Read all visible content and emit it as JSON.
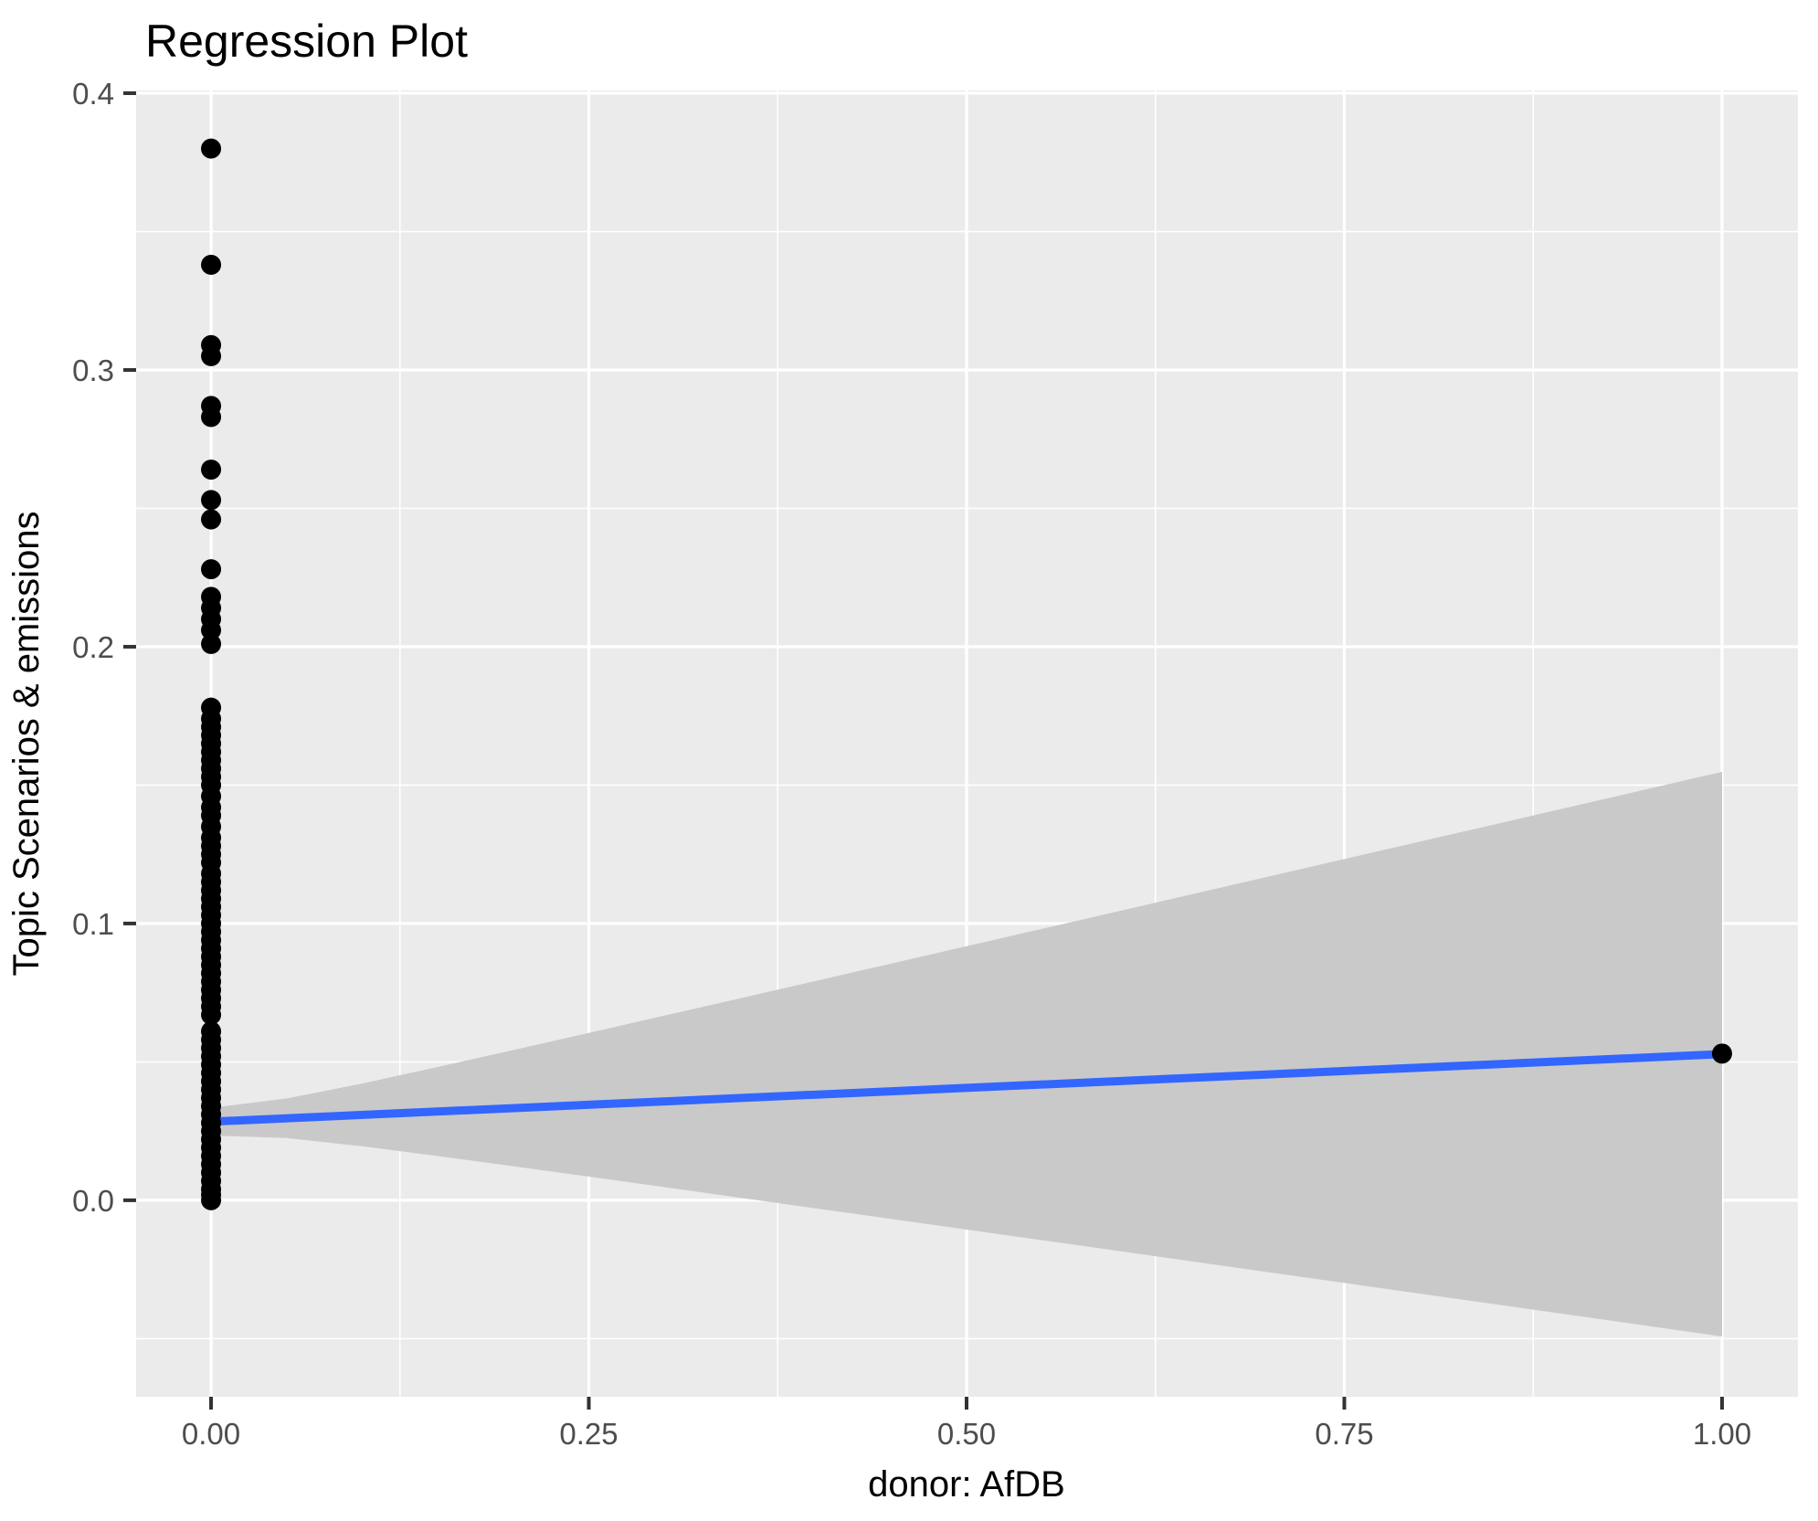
{
  "chart_data": {
    "type": "scatter",
    "title": "Regression Plot",
    "xlabel": "donor: AfDB",
    "ylabel": "Topic Scenarios & emissions",
    "xlim": [
      -0.0496,
      1.0502
    ],
    "ylim": [
      -0.071,
      0.401
    ],
    "grid": "on",
    "legend": "none",
    "x_ticks": {
      "values": [
        0.0,
        0.25,
        0.5,
        0.75,
        1.0
      ],
      "labels": [
        "0.00",
        "0.25",
        "0.50",
        "0.75",
        "1.00"
      ]
    },
    "x_minor_ticks": [
      0.125,
      0.375,
      0.625,
      0.875
    ],
    "y_ticks": {
      "values": [
        0.0,
        0.1,
        0.2,
        0.3,
        0.4
      ],
      "labels": [
        "0.0",
        "0.1",
        "0.2",
        "0.3",
        "0.4"
      ]
    },
    "y_minor_ticks": [
      -0.05,
      0.05,
      0.15,
      0.25,
      0.35
    ],
    "series": [
      {
        "name": "observations at x=0",
        "x_constant": 0,
        "y_values": [
          0.0,
          0.002,
          0.004,
          0.007,
          0.01,
          0.013,
          0.016,
          0.019,
          0.022,
          0.025,
          0.028,
          0.031,
          0.034,
          0.037,
          0.04,
          0.043,
          0.046,
          0.049,
          0.052,
          0.055,
          0.058,
          0.061,
          0.067,
          0.07,
          0.073,
          0.076,
          0.079,
          0.082,
          0.085,
          0.088,
          0.091,
          0.094,
          0.097,
          0.1,
          0.103,
          0.106,
          0.109,
          0.112,
          0.115,
          0.118,
          0.122,
          0.125,
          0.128,
          0.131,
          0.135,
          0.139,
          0.142,
          0.146,
          0.15,
          0.153,
          0.156,
          0.159,
          0.162,
          0.165,
          0.168,
          0.171,
          0.174,
          0.178,
          0.201,
          0.206,
          0.21,
          0.214,
          0.218,
          0.228,
          0.246,
          0.253,
          0.264,
          0.283,
          0.287,
          0.305,
          0.309,
          0.338,
          0.38
        ]
      },
      {
        "name": "observation at x=1",
        "x_constant": 1,
        "y_values": [
          0.053
        ]
      }
    ],
    "regression_line": {
      "x": [
        0,
        1
      ],
      "y": [
        0.0284,
        0.0528
      ],
      "intercept": 0.0284,
      "slope": 0.0244
    },
    "confidence_band": {
      "x": [
        0,
        1
      ],
      "upper": [
        0.0334,
        0.1548
      ],
      "lower": [
        0.0234,
        -0.0492
      ],
      "halfwidth_at_0": 0.005,
      "halfwidth_at_1": 0.102,
      "shape": "flared"
    },
    "colors": {
      "panel_background": "#EBEBEB",
      "gridline": "#FFFFFF",
      "point": "#000000",
      "regression_line": "#3366FF",
      "confidence_band": "#C9C9C9",
      "tick_label": "#4D4D4D",
      "tick_mark": "#333333",
      "title_text": "#000000",
      "axis_title_text": "#000000",
      "outer_background": "#FFFFFF"
    }
  }
}
